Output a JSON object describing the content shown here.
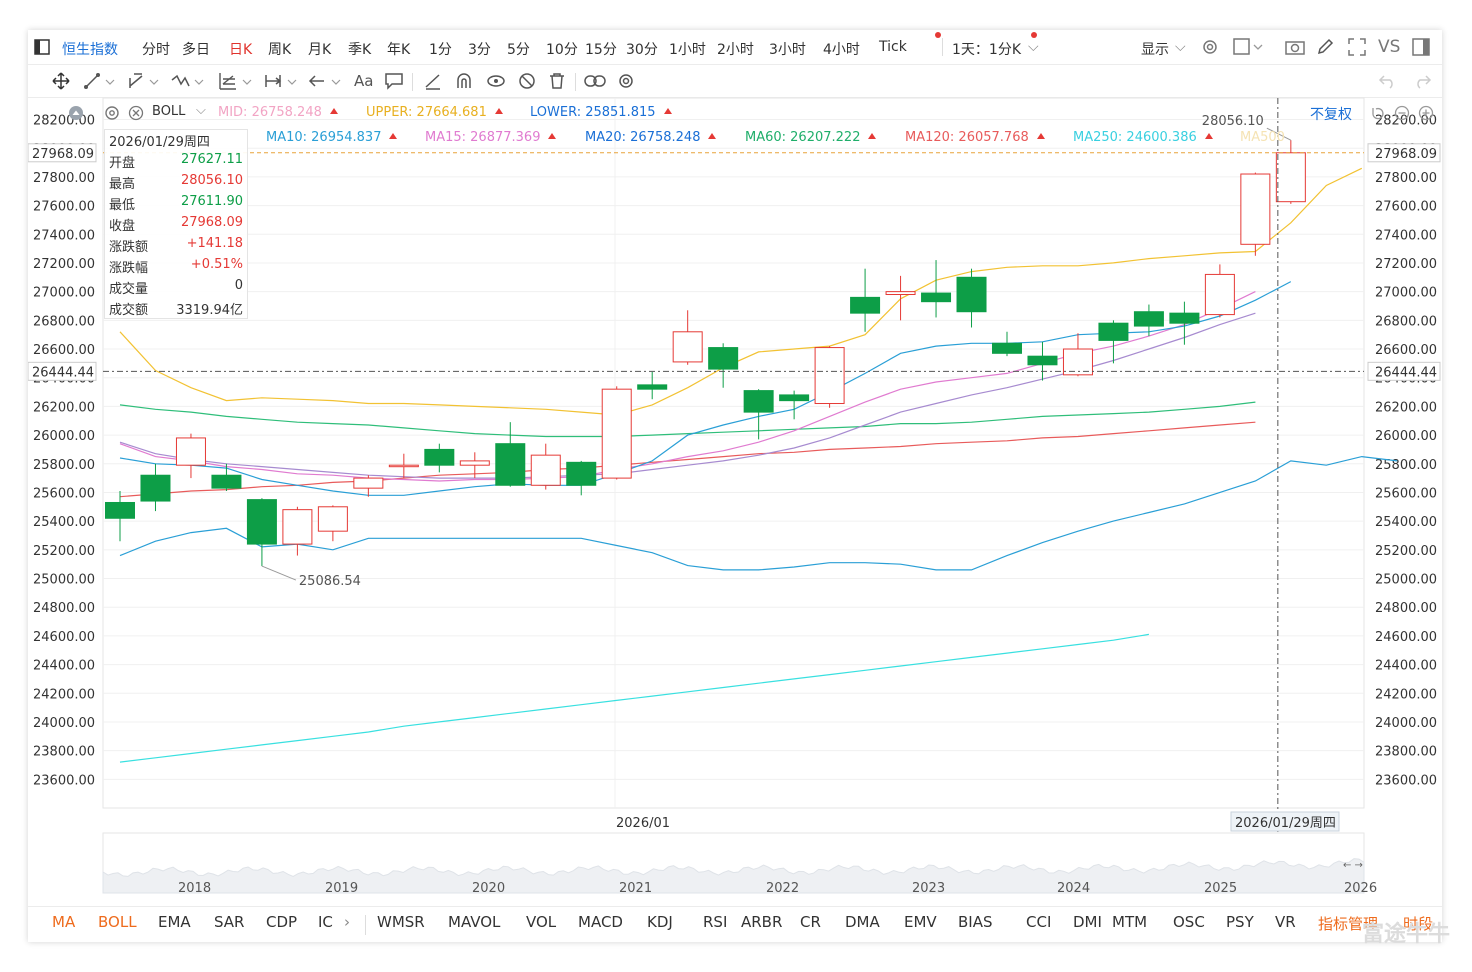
{
  "toolbar": {
    "index_name": "恒生指数",
    "periods": [
      "分时",
      "多日",
      "日K",
      "周K",
      "月K",
      "季K",
      "年K",
      "1分",
      "3分",
      "5分",
      "10分",
      "15分",
      "30分",
      "1小时",
      "2小时",
      "3小时",
      "4小时",
      "Tick"
    ],
    "active_period": "日K",
    "interval_select": "1天：1分K",
    "display_label": "显示",
    "vs_label": "VS",
    "text_tool": "Aa"
  },
  "indicators": {
    "boll_label": "BOLL",
    "mid": "MID:  26758.248",
    "upper": "UPPER:  27664.681",
    "lower": "LOWER:  25851.815",
    "adjust_label": "不复权",
    "ma10": "MA10:  26954.837",
    "ma15": "MA15:  26877.369",
    "ma20": "MA20:  26758.248",
    "ma60": "MA60:  26207.222",
    "ma120": "MA120:  26057.768",
    "ma250": "MA250:  24600.386",
    "ma500": "MA500"
  },
  "ohlc_box": {
    "date": "2026/01/29周四",
    "rows": [
      {
        "k": "开盘",
        "v": "27627.11",
        "c": "#0d9e47"
      },
      {
        "k": "最高",
        "v": "28056.10",
        "c": "#e53935"
      },
      {
        "k": "最低",
        "v": "27611.90",
        "c": "#0d9e47"
      },
      {
        "k": "收盘",
        "v": "27968.09",
        "c": "#e53935"
      },
      {
        "k": "涨跌额",
        "v": "+141.18",
        "c": "#e53935"
      },
      {
        "k": "涨跌幅",
        "v": "+0.51%",
        "c": "#e53935"
      },
      {
        "k": "成交量",
        "v": "0",
        "c": "#333333"
      },
      {
        "k": "成交额",
        "v": "3319.94亿",
        "c": "#333333"
      }
    ]
  },
  "colors": {
    "up": "#e53935",
    "down": "#0d9e47",
    "boll_upper": "#f2c233",
    "boll_lower": "#2a9fd6",
    "ma10": "#2a9fd6",
    "ma15": "#e07bd0",
    "ma20": "#a78bd0",
    "ma60": "#2fbe7a",
    "ma120": "#e85b5b",
    "ma250": "#39e0e0",
    "accent": "#1a6fd6",
    "orange": "#ee6b1d"
  },
  "chart_data": {
    "type": "candlestick",
    "y_ticks": [
      28200,
      28000,
      27800,
      27600,
      27400,
      27200,
      27000,
      26800,
      26600,
      26400,
      26200,
      26000,
      25800,
      25600,
      25400,
      25200,
      25000,
      24800,
      24600,
      24400,
      24200,
      24000,
      23800,
      23600
    ],
    "ylim": [
      23400,
      28350
    ],
    "y_tick_labels": [
      "28200.00",
      "28000.00",
      "27800.00",
      "27600.00",
      "27400.00",
      "27200.00",
      "27000.00",
      "26800.00",
      "26600.00",
      "26400.00",
      "26200.00",
      "26000.00",
      "25800.00",
      "25600.00",
      "25400.00",
      "25200.00",
      "25000.00",
      "24800.00",
      "24600.00",
      "24400.00",
      "24200.00",
      "24000.00",
      "23800.00",
      "23600.00"
    ],
    "x_label": "2026/01",
    "crosshair_date": "2026/01/29周四",
    "crosshair_price": "27968.09",
    "ref_price": "26444.44",
    "high_annot": "28056.10",
    "low_annot": "25086.54",
    "candles": [
      {
        "o": 25530,
        "h": 25610,
        "l": 25260,
        "c": 25420
      },
      {
        "o": 25720,
        "h": 25800,
        "l": 25470,
        "c": 25540
      },
      {
        "o": 25790,
        "h": 26010,
        "l": 25700,
        "c": 25980
      },
      {
        "o": 25720,
        "h": 25800,
        "l": 25610,
        "c": 25630
      },
      {
        "o": 25550,
        "h": 25560,
        "l": 25086.54,
        "c": 25240
      },
      {
        "o": 25240,
        "h": 25500,
        "l": 25160,
        "c": 25480
      },
      {
        "o": 25330,
        "h": 25510,
        "l": 25260,
        "c": 25500
      },
      {
        "o": 25630,
        "h": 25720,
        "l": 25570,
        "c": 25700
      },
      {
        "o": 25780,
        "h": 25870,
        "l": 25700,
        "c": 25790
      },
      {
        "o": 25900,
        "h": 25940,
        "l": 25740,
        "c": 25790
      },
      {
        "o": 25790,
        "h": 25880,
        "l": 25700,
        "c": 25820
      },
      {
        "o": 25940,
        "h": 26090,
        "l": 25640,
        "c": 25650
      },
      {
        "o": 25650,
        "h": 25940,
        "l": 25620,
        "c": 25860
      },
      {
        "o": 25810,
        "h": 25820,
        "l": 25580,
        "c": 25650
      },
      {
        "o": 25700,
        "h": 26340,
        "l": 25690,
        "c": 26320
      },
      {
        "o": 26350,
        "h": 26440,
        "l": 26250,
        "c": 26320
      },
      {
        "o": 26510,
        "h": 26870,
        "l": 26490,
        "c": 26720
      },
      {
        "o": 26610,
        "h": 26640,
        "l": 26330,
        "c": 26460
      },
      {
        "o": 26310,
        "h": 26320,
        "l": 25970,
        "c": 26160
      },
      {
        "o": 26280,
        "h": 26310,
        "l": 26110,
        "c": 26240
      },
      {
        "o": 26220,
        "h": 26620,
        "l": 26190,
        "c": 26610
      },
      {
        "o": 26960,
        "h": 27160,
        "l": 26720,
        "c": 26850
      },
      {
        "o": 26980,
        "h": 27110,
        "l": 26800,
        "c": 27000
      },
      {
        "o": 26990,
        "h": 27220,
        "l": 26820,
        "c": 26930
      },
      {
        "o": 27100,
        "h": 27160,
        "l": 26750,
        "c": 26860
      },
      {
        "o": 26640,
        "h": 26720,
        "l": 26550,
        "c": 26570
      },
      {
        "o": 26550,
        "h": 26650,
        "l": 26380,
        "c": 26490
      },
      {
        "o": 26420,
        "h": 26710,
        "l": 26410,
        "c": 26600
      },
      {
        "o": 26780,
        "h": 26800,
        "l": 26500,
        "c": 26660
      },
      {
        "o": 26860,
        "h": 26910,
        "l": 26690,
        "c": 26760
      },
      {
        "o": 26850,
        "h": 26930,
        "l": 26630,
        "c": 26780
      },
      {
        "o": 26840,
        "h": 27190,
        "l": 26820,
        "c": 27120
      },
      {
        "o": 27330,
        "h": 27830,
        "l": 27250,
        "c": 27820
      },
      {
        "o": 27627.11,
        "h": 28056.1,
        "l": 27611.9,
        "c": 27968.09
      }
    ],
    "boll_upper": [
      26720,
      26450,
      26330,
      26240,
      26260,
      26250,
      26240,
      26220,
      26220,
      26210,
      26200,
      26190,
      26180,
      26160,
      26140,
      26210,
      26330,
      26470,
      26580,
      26600,
      26620,
      26700,
      26950,
      27080,
      27140,
      27170,
      27180,
      27180,
      27200,
      27230,
      27250,
      27270,
      27280,
      27480,
      27740,
      27860
    ],
    "boll_lower": [
      25160,
      25260,
      25320,
      25350,
      25220,
      25240,
      25200,
      25280,
      25280,
      25280,
      25280,
      25280,
      25280,
      25280,
      25230,
      25180,
      25090,
      25060,
      25060,
      25080,
      25110,
      25110,
      25100,
      25060,
      25060,
      25160,
      25250,
      25330,
      25400,
      25460,
      25520,
      25600,
      25680,
      25820,
      25790,
      25850,
      25820
    ],
    "ma10": [
      25840,
      25800,
      25790,
      25770,
      25690,
      25650,
      25610,
      25580,
      25580,
      25610,
      25640,
      25660,
      25650,
      25650,
      25730,
      25820,
      26000,
      26070,
      26130,
      26180,
      26300,
      26430,
      26570,
      26620,
      26640,
      26640,
      26650,
      26700,
      26710,
      26720,
      26760,
      26830,
      26940,
      27070
    ],
    "ma15": [
      25940,
      25850,
      25820,
      25780,
      25760,
      25730,
      25720,
      25700,
      25690,
      25680,
      25690,
      25690,
      25700,
      25710,
      25760,
      25800,
      25850,
      25890,
      25950,
      26030,
      26130,
      26230,
      26320,
      26370,
      26400,
      26430,
      26500,
      26570,
      26620,
      26690,
      26770,
      26880,
      27000
    ],
    "ma20": [
      25950,
      25870,
      25830,
      25800,
      25780,
      25760,
      25740,
      25720,
      25710,
      25700,
      25700,
      25700,
      25710,
      25720,
      25730,
      25760,
      25790,
      25820,
      25860,
      25910,
      25980,
      26070,
      26160,
      26220,
      26280,
      26330,
      26390,
      26450,
      26520,
      26600,
      26680,
      26770,
      26850
    ],
    "ma60": [
      26210,
      26180,
      26160,
      26130,
      26110,
      26090,
      26080,
      26070,
      26050,
      26030,
      26010,
      26000,
      25990,
      25990,
      25990,
      26000,
      26010,
      26020,
      26030,
      26040,
      26050,
      26060,
      26080,
      26080,
      26090,
      26110,
      26130,
      26140,
      26150,
      26160,
      26180,
      26200,
      26230
    ],
    "ma120": [
      25570,
      25590,
      25610,
      25620,
      25640,
      25650,
      25670,
      25680,
      25700,
      25720,
      25730,
      25740,
      25760,
      25770,
      25790,
      25810,
      25830,
      25850,
      25870,
      25880,
      25900,
      25910,
      25920,
      25940,
      25950,
      25960,
      25980,
      25990,
      26010,
      26030,
      26050,
      26070,
      26090
    ],
    "ma250": [
      23720,
      23750,
      23780,
      23810,
      23840,
      23870,
      23900,
      23930,
      23970,
      24000,
      24030,
      24060,
      24090,
      24120,
      24150,
      24180,
      24210,
      24240,
      24270,
      24300,
      24330,
      24360,
      24390,
      24420,
      24450,
      24480,
      24510,
      24540,
      24570,
      24610
    ]
  },
  "navigator": {
    "years": [
      "2018",
      "2019",
      "2020",
      "2021",
      "2022",
      "2023",
      "2024",
      "2025",
      "2026"
    ]
  },
  "bottom_tabs": [
    "MA",
    "BOLL",
    "EMA",
    "SAR",
    "CDP",
    "IC",
    "WMSR",
    "MAVOL",
    "VOL",
    "MACD",
    "KDJ",
    "RSI",
    "ARBR",
    "CR",
    "DMA",
    "EMV",
    "BIAS",
    "CCI",
    "DMI",
    "MTM",
    "OSC",
    "PSY",
    "VR"
  ],
  "bottom_active": [
    "MA",
    "BOLL"
  ],
  "indicator_manage": "指标管理",
  "time_segment": "时段",
  "watermark": "富途牛牛"
}
